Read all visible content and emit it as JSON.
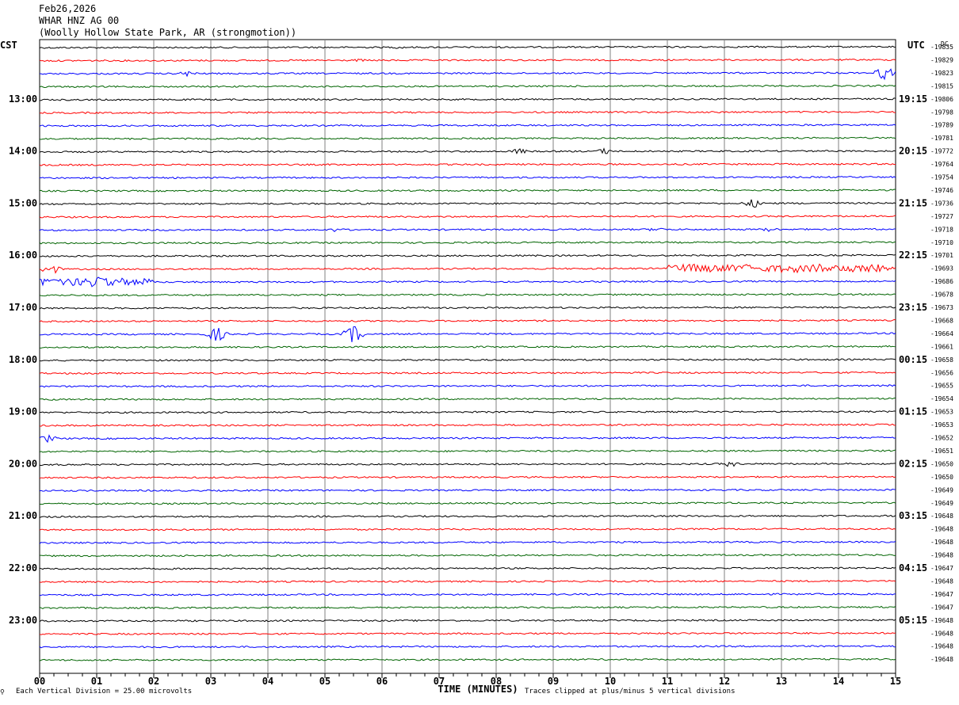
{
  "header": {
    "date": "Feb26,2026",
    "station": "WHAR HNZ AG 00",
    "location": "(Woolly Hollow State Park, AR (strongmotion))"
  },
  "left_tz": "CST",
  "right_tz": "UTC",
  "right_dc_label": "DC",
  "footer": {
    "scale_note": "Each Vertical Division =   25.00 microvolts",
    "xlabel": "TIME (MINUTES)",
    "clip_note": "Traces clipped at plus/minus 5 vertical divisions"
  },
  "colors": {
    "black": "#000000",
    "red": "#ff0000",
    "blue": "#0000ff",
    "green": "#006400",
    "grid": "#808080"
  },
  "chart_data": {
    "type": "line",
    "xlabel": "TIME (MINUTES)",
    "xlim": [
      0,
      15
    ],
    "x_ticks": [
      "00",
      "01",
      "02",
      "03",
      "04",
      "05",
      "06",
      "07",
      "08",
      "09",
      "10",
      "11",
      "12",
      "13",
      "14",
      "15"
    ],
    "left_hour_labels": [
      "13:00",
      "14:00",
      "15:00",
      "16:00",
      "17:00",
      "18:00",
      "19:00",
      "20:00",
      "21:00",
      "22:00",
      "23:00"
    ],
    "right_hour_labels": [
      "19:15",
      "20:15",
      "21:15",
      "22:15",
      "23:15",
      "00:15",
      "01:15",
      "02:15",
      "03:15",
      "04:15",
      "05:15"
    ],
    "trace_color_cycle": [
      "black",
      "red",
      "blue",
      "green"
    ],
    "dc_offsets": [
      -19835,
      -19829,
      -19823,
      -19815,
      -19806,
      -19798,
      -19789,
      -19781,
      -19772,
      -19764,
      -19754,
      -19746,
      -19736,
      -19727,
      -19718,
      -19710,
      -19701,
      -19693,
      -19686,
      -19678,
      -19673,
      -19668,
      -19664,
      -19661,
      -19658,
      -19656,
      -19655,
      -19654,
      -19653,
      -19653,
      -19652,
      -19651,
      -19650,
      -19650,
      -19649,
      -19649,
      -19648,
      -19648,
      -19648,
      -19648,
      -19647,
      -19648,
      -19647,
      -19647,
      -19648,
      -19648,
      -19648,
      -19648
    ],
    "events": [
      {
        "trace": 0,
        "minute": 6.3,
        "amp": 2
      },
      {
        "trace": 1,
        "minute": 5.6,
        "amp": 2
      },
      {
        "trace": 2,
        "minute": 2.6,
        "amp": 4
      },
      {
        "trace": 2,
        "minute": 14.8,
        "amp": 9
      },
      {
        "trace": 8,
        "minute": 8.4,
        "amp": 4
      },
      {
        "trace": 8,
        "minute": 9.9,
        "amp": 4
      },
      {
        "trace": 12,
        "minute": 12.5,
        "amp": 6
      },
      {
        "trace": 14,
        "minute": 5.2,
        "amp": 3
      },
      {
        "trace": 14,
        "minute": 10.8,
        "amp": 3
      },
      {
        "trace": 14,
        "minute": 12.8,
        "amp": 3
      },
      {
        "trace": 17,
        "minute": 0.2,
        "amp": 7
      },
      {
        "trace": 18,
        "minute": 1.0,
        "amp": 10
      },
      {
        "trace": 22,
        "minute": 3.1,
        "amp": 10
      },
      {
        "trace": 22,
        "minute": 5.5,
        "amp": 12
      },
      {
        "trace": 30,
        "minute": 0.15,
        "amp": 5
      },
      {
        "trace": 32,
        "minute": 12.1,
        "amp": 4
      }
    ],
    "noisy_segments": [
      {
        "trace": 17,
        "from": 11.0,
        "to": 15.0,
        "amp": 6
      },
      {
        "trace": 18,
        "from": 0.0,
        "to": 2.0,
        "amp": 6
      }
    ]
  }
}
